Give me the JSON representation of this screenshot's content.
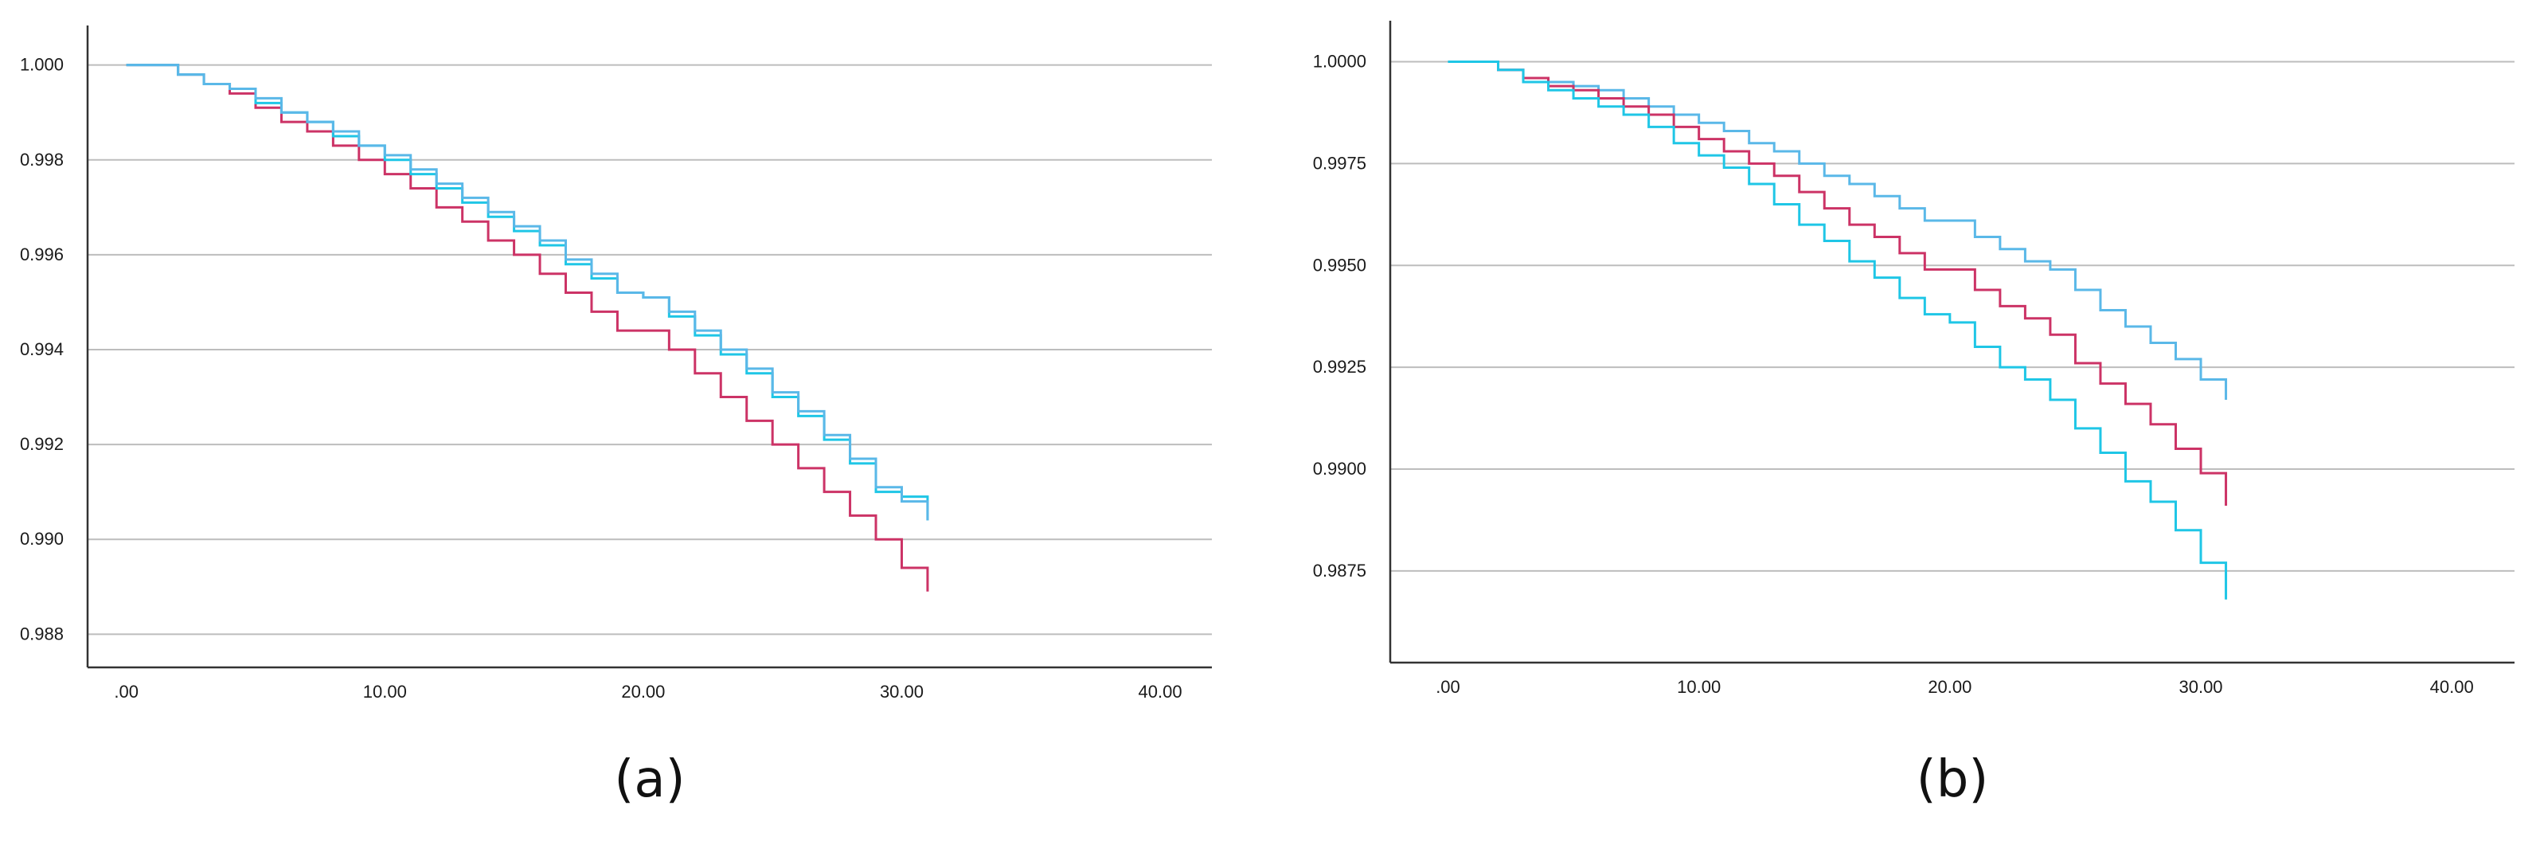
{
  "chart_data": [
    {
      "type": "line",
      "step": true,
      "panel_label": "(a)",
      "x_ticks": [
        ".00",
        "10.00",
        "20.00",
        "30.00",
        "40.00"
      ],
      "y_ticks": [
        "0.988",
        "0.990",
        "0.992",
        "0.994",
        "0.996",
        "0.998",
        "1.000"
      ],
      "xlim": [
        -1.5,
        42
      ],
      "ylim": [
        0.9873,
        1.0007
      ],
      "grid": true,
      "x": [
        0,
        1,
        2,
        3,
        4,
        5,
        6,
        7,
        8,
        9,
        10,
        11,
        12,
        13,
        14,
        15,
        16,
        17,
        18,
        19,
        20,
        21,
        22,
        23,
        24,
        25,
        26,
        27,
        28,
        29,
        30,
        31
      ],
      "series": [
        {
          "color": "#cc3366",
          "values": [
            1.0,
            1.0,
            0.9998,
            0.9996,
            0.9994,
            0.9991,
            0.9988,
            0.9986,
            0.9983,
            0.998,
            0.9977,
            0.9974,
            0.997,
            0.9967,
            0.9963,
            0.996,
            0.9956,
            0.9952,
            0.9948,
            0.9944,
            0.9944,
            0.994,
            0.9935,
            0.993,
            0.9925,
            0.992,
            0.9915,
            0.991,
            0.9905,
            0.99,
            0.9894,
            0.9889
          ]
        },
        {
          "color": "#1fc6e6",
          "values": [
            1.0,
            1.0,
            0.9998,
            0.9996,
            0.9995,
            0.9992,
            0.999,
            0.9988,
            0.9985,
            0.9983,
            0.998,
            0.9977,
            0.9974,
            0.9971,
            0.9968,
            0.9965,
            0.9962,
            0.9958,
            0.9955,
            0.9952,
            0.9951,
            0.9947,
            0.9943,
            0.9939,
            0.9935,
            0.993,
            0.9926,
            0.9921,
            0.9916,
            0.991,
            0.9909,
            0.9904
          ]
        },
        {
          "color": "#5ab8e8",
          "values": [
            1.0,
            1.0,
            0.9998,
            0.9996,
            0.9995,
            0.9993,
            0.999,
            0.9988,
            0.9986,
            0.9983,
            0.9981,
            0.9978,
            0.9975,
            0.9972,
            0.9969,
            0.9966,
            0.9963,
            0.9959,
            0.9956,
            0.9952,
            0.9951,
            0.9948,
            0.9944,
            0.994,
            0.9936,
            0.9931,
            0.9927,
            0.9922,
            0.9917,
            0.9911,
            0.9908,
            0.9904
          ]
        }
      ]
    },
    {
      "type": "line",
      "step": true,
      "panel_label": "(b)",
      "x_ticks": [
        ".00",
        "10.00",
        "20.00",
        "30.00",
        "40.00"
      ],
      "y_ticks": [
        "0.9875",
        "0.9900",
        "0.9925",
        "0.9950",
        "0.9975",
        "1.0000"
      ],
      "xlim": [
        -2.3,
        42.5
      ],
      "ylim": [
        0.98525,
        1.00085
      ],
      "grid": true,
      "x": [
        0,
        1,
        2,
        3,
        4,
        5,
        6,
        7,
        8,
        9,
        10,
        11,
        12,
        13,
        14,
        15,
        16,
        17,
        18,
        19,
        20,
        21,
        22,
        23,
        24,
        25,
        26,
        27,
        28,
        29,
        30,
        31
      ],
      "series": [
        {
          "color": "#5ab8e8",
          "values": [
            1.0,
            1.0,
            0.9998,
            0.9996,
            0.9995,
            0.9994,
            0.9993,
            0.9991,
            0.9989,
            0.9987,
            0.9985,
            0.9983,
            0.998,
            0.9978,
            0.9975,
            0.9972,
            0.997,
            0.9967,
            0.9964,
            0.9961,
            0.9961,
            0.9957,
            0.9954,
            0.9951,
            0.9949,
            0.9944,
            0.9939,
            0.9935,
            0.9931,
            0.9927,
            0.9922,
            0.9917
          ]
        },
        {
          "color": "#cc3366",
          "values": [
            1.0,
            1.0,
            0.9998,
            0.9996,
            0.9994,
            0.9993,
            0.9991,
            0.9989,
            0.9987,
            0.9984,
            0.9981,
            0.9978,
            0.9975,
            0.9972,
            0.9968,
            0.9964,
            0.996,
            0.9957,
            0.9953,
            0.9949,
            0.9949,
            0.9944,
            0.994,
            0.9937,
            0.9933,
            0.9926,
            0.9921,
            0.9916,
            0.9911,
            0.9905,
            0.9899,
            0.9891
          ]
        },
        {
          "color": "#1fc6e6",
          "values": [
            1.0,
            1.0,
            0.9998,
            0.9995,
            0.9993,
            0.9991,
            0.9989,
            0.9987,
            0.9984,
            0.998,
            0.9977,
            0.9974,
            0.997,
            0.9965,
            0.996,
            0.9956,
            0.9951,
            0.9947,
            0.9942,
            0.9938,
            0.9936,
            0.993,
            0.9925,
            0.9922,
            0.9917,
            0.991,
            0.9904,
            0.9897,
            0.9892,
            0.9885,
            0.9877,
            0.9868
          ]
        }
      ]
    }
  ]
}
